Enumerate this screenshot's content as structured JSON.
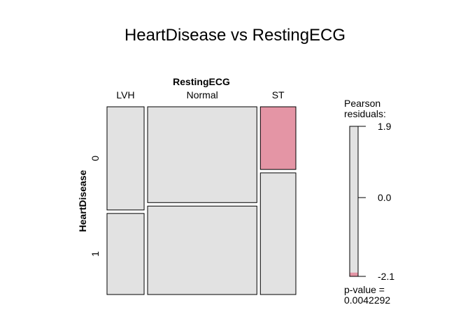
{
  "chart_data": {
    "type": "mosaic",
    "title": "HeartDisease vs RestingECG",
    "column_variable": "RestingECG",
    "row_variable": "HeartDisease",
    "columns": [
      "LVH",
      "Normal",
      "ST"
    ],
    "rows": [
      "0",
      "1"
    ],
    "column_proportions": [
      0.204,
      0.601,
      0.195
    ],
    "row_proportions_within_column": {
      "LVH": [
        0.56,
        0.44
      ],
      "Normal": [
        0.52,
        0.48
      ],
      "ST": [
        0.34,
        0.66
      ]
    },
    "pearson_residual_fill": {
      "LVH": [
        "#e2e2e2",
        "#e2e2e2"
      ],
      "Normal": [
        "#e2e2e2",
        "#e2e2e2"
      ],
      "ST": [
        "#e495a5",
        "#e2e2e2"
      ]
    },
    "legend": {
      "title_line1": "Pearson",
      "title_line2": "residuals:",
      "max_label": "1.9",
      "mid_label": "0.0",
      "min_label": "-2.1",
      "range": [
        -2.1,
        1.9
      ],
      "neutral_color": "#e2e2e2",
      "negative_color": "#e495a5",
      "negative_band_from": -2.0,
      "pvalue_label": "p-value =",
      "pvalue": "0.0042292"
    }
  }
}
